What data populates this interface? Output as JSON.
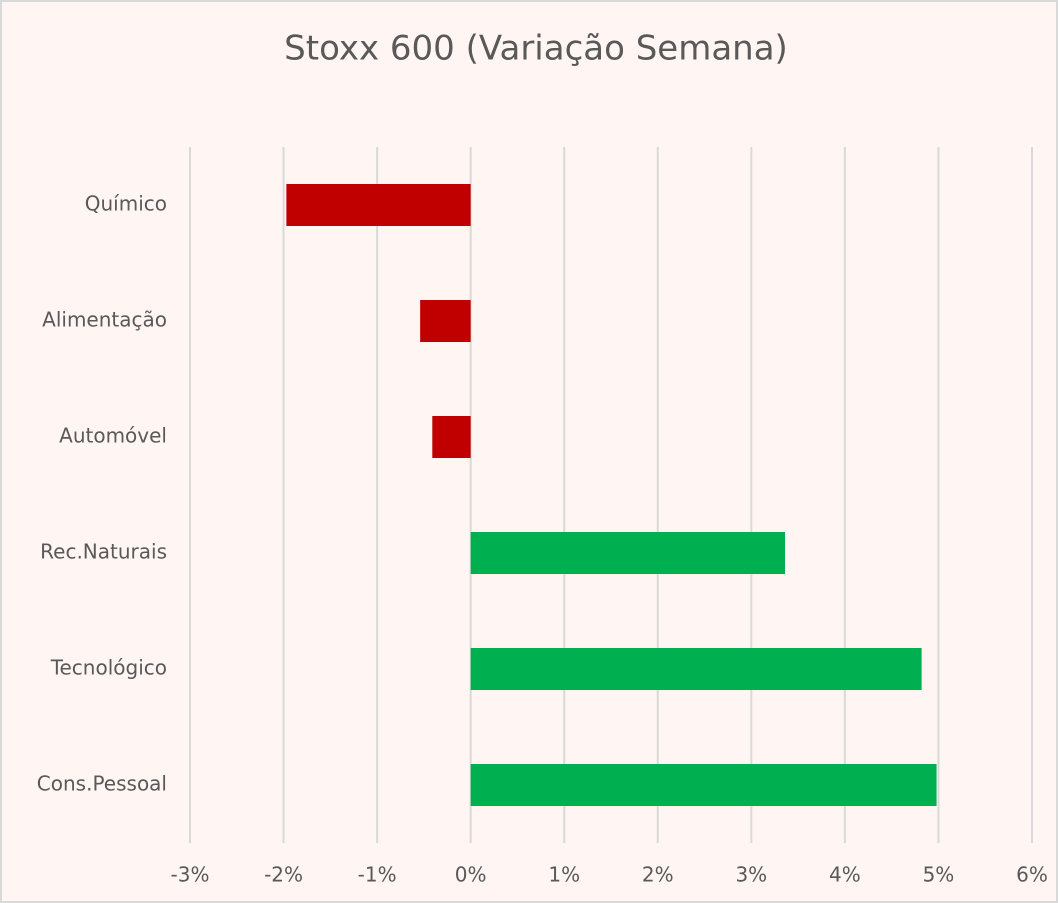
{
  "chart_data": {
    "type": "barh",
    "title": "Stoxx 600 (Variação Semana)",
    "categories": [
      "Químico",
      "Alimentação",
      "Automóvel",
      "Rec.Naturais",
      "Tecnológico",
      "Cons.Pessoal"
    ],
    "values": [
      -1.97,
      -0.54,
      -0.41,
      3.36,
      4.82,
      4.98
    ],
    "colors": [
      "#c00000",
      "#c00000",
      "#c00000",
      "#00b050",
      "#00b050",
      "#00b050"
    ],
    "xlim": [
      -3,
      6
    ],
    "xticks": [
      {
        "value": -3,
        "label": "-3%"
      },
      {
        "value": -2,
        "label": "-2%"
      },
      {
        "value": -1,
        "label": "-1%"
      },
      {
        "value": 0,
        "label": "0%"
      },
      {
        "value": 1,
        "label": "1%"
      },
      {
        "value": 2,
        "label": "2%"
      },
      {
        "value": 3,
        "label": "3%"
      },
      {
        "value": 4,
        "label": "4%"
      },
      {
        "value": 5,
        "label": "5%"
      },
      {
        "value": 6,
        "label": "6%"
      }
    ],
    "grid": true
  }
}
